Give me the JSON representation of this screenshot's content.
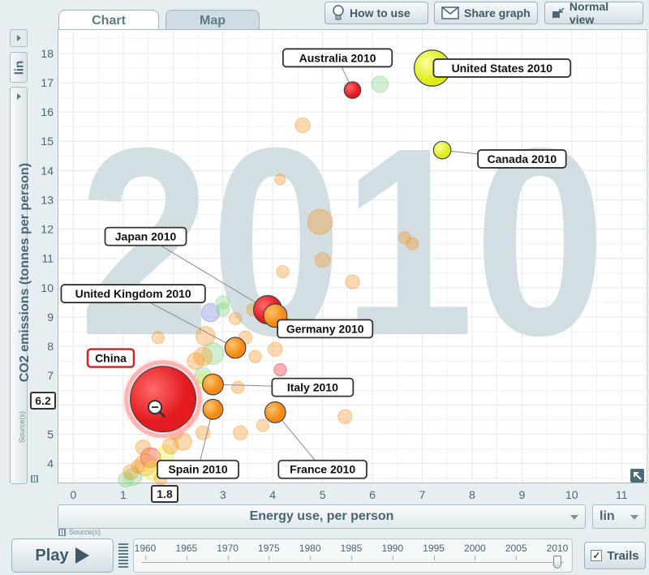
{
  "tabs": {
    "chart": "Chart",
    "map": "Map"
  },
  "toolbar": {
    "how_to_use": "How to use",
    "share_graph": "Share graph",
    "normal_view": "Normal view"
  },
  "y_scale": "lin",
  "x_scale": "lin",
  "source_label": "Source(s)",
  "selected": {
    "name": "China",
    "x_value": "1.8",
    "y_value": "6.2"
  },
  "play": {
    "label": "Play"
  },
  "trails": {
    "label": "Trails"
  },
  "timeline": {
    "years": [
      "1960",
      "1965",
      "1970",
      "1975",
      "1980",
      "1985",
      "1990",
      "1995",
      "2000",
      "2005",
      "2010"
    ],
    "current": 2010
  },
  "colors": {
    "red": "#ec2227",
    "orange": "#f6921e",
    "yellow": "#e5f232",
    "green": "#7fd37a",
    "blue": "#6f7fe0",
    "watermark": "#d3dee3"
  },
  "chart_data": {
    "type": "scatter",
    "year_watermark": "2010",
    "xlabel": "Energy use, per person",
    "ylabel": "CO2 emissions (tonnes per person)",
    "xlim": [
      -0.3,
      11.5
    ],
    "ylim": [
      3.35,
      18.8
    ],
    "xticks": [
      0,
      1,
      2,
      3,
      4,
      5,
      6,
      7,
      8,
      9,
      10,
      11
    ],
    "yticks": [
      4,
      5,
      6,
      7,
      8,
      9,
      10,
      11,
      12,
      13,
      14,
      15,
      16,
      17,
      18
    ],
    "highlighted": [
      {
        "label": "Australia 2010",
        "x": 5.6,
        "y": 16.75,
        "size": 1.2,
        "color": "red",
        "tag_x": 5.3,
        "tag_y": 17.85
      },
      {
        "label": "United States 2010",
        "x": 7.2,
        "y": 17.5,
        "size": 3.5,
        "color": "yellow",
        "tag_x": 8.6,
        "tag_y": 17.5
      },
      {
        "label": "Canada 2010",
        "x": 7.4,
        "y": 14.7,
        "size": 1.3,
        "color": "yellow",
        "tag_x": 9.0,
        "tag_y": 14.4
      },
      {
        "label": "Japan 2010",
        "x": 3.9,
        "y": 9.25,
        "size": 2.6,
        "color": "red",
        "tag_x": 1.45,
        "tag_y": 11.75
      },
      {
        "label": "Germany 2010",
        "x": 4.05,
        "y": 9.05,
        "size": 2.0,
        "color": "orange",
        "tag_x": 5.05,
        "tag_y": 8.6
      },
      {
        "label": "United Kingdom 2010",
        "x": 3.25,
        "y": 7.95,
        "size": 1.7,
        "color": "orange",
        "tag_x": 1.2,
        "tag_y": 9.8
      },
      {
        "label": "Italy 2010",
        "x": 2.8,
        "y": 6.7,
        "size": 1.7,
        "color": "orange",
        "tag_x": 4.8,
        "tag_y": 6.6
      },
      {
        "label": "Spain 2010",
        "x": 2.8,
        "y": 5.85,
        "size": 1.6,
        "color": "orange",
        "tag_x": 2.5,
        "tag_y": 3.8
      },
      {
        "label": "France 2010",
        "x": 4.05,
        "y": 5.75,
        "size": 1.7,
        "color": "orange",
        "tag_x": 5.0,
        "tag_y": 3.8
      },
      {
        "label": "China",
        "x": 1.8,
        "y": 6.2,
        "size": 7.0,
        "color": "red",
        "tag_x": 0.75,
        "tag_y": 7.6
      }
    ],
    "background_points": [
      {
        "x": 6.15,
        "y": 16.95,
        "size": 1.2,
        "color": "green"
      },
      {
        "x": 4.6,
        "y": 15.55,
        "size": 1.0,
        "color": "orange"
      },
      {
        "x": 4.95,
        "y": 12.25,
        "size": 2.2,
        "color": "orange"
      },
      {
        "x": 5.0,
        "y": 10.95,
        "size": 1.0,
        "color": "orange"
      },
      {
        "x": 6.65,
        "y": 11.7,
        "size": 0.7,
        "color": "orange"
      },
      {
        "x": 6.8,
        "y": 11.5,
        "size": 0.7,
        "color": "orange"
      },
      {
        "x": 5.6,
        "y": 10.2,
        "size": 0.9,
        "color": "orange"
      },
      {
        "x": 4.2,
        "y": 10.55,
        "size": 0.7,
        "color": "orange"
      },
      {
        "x": 4.15,
        "y": 13.7,
        "size": 0.5,
        "color": "orange"
      },
      {
        "x": 2.75,
        "y": 9.15,
        "size": 1.4,
        "color": "blue"
      },
      {
        "x": 3.0,
        "y": 9.5,
        "size": 0.8,
        "color": "green"
      },
      {
        "x": 3.0,
        "y": 9.25,
        "size": 0.8,
        "color": "green"
      },
      {
        "x": 3.6,
        "y": 9.25,
        "size": 0.7,
        "color": "orange"
      },
      {
        "x": 3.25,
        "y": 8.95,
        "size": 0.7,
        "color": "orange"
      },
      {
        "x": 2.65,
        "y": 8.35,
        "size": 1.5,
        "color": "orange"
      },
      {
        "x": 2.8,
        "y": 7.75,
        "size": 1.8,
        "color": "green"
      },
      {
        "x": 2.6,
        "y": 7.65,
        "size": 1.4,
        "color": "orange"
      },
      {
        "x": 2.45,
        "y": 7.5,
        "size": 1.2,
        "color": "orange"
      },
      {
        "x": 3.45,
        "y": 8.3,
        "size": 0.8,
        "color": "orange"
      },
      {
        "x": 4.05,
        "y": 7.9,
        "size": 0.9,
        "color": "orange"
      },
      {
        "x": 3.65,
        "y": 7.65,
        "size": 0.7,
        "color": "orange"
      },
      {
        "x": 4.15,
        "y": 7.2,
        "size": 0.7,
        "color": "red"
      },
      {
        "x": 1.7,
        "y": 8.3,
        "size": 0.7,
        "color": "orange"
      },
      {
        "x": 2.6,
        "y": 7.0,
        "size": 1.2,
        "color": "green"
      },
      {
        "x": 2.65,
        "y": 6.8,
        "size": 1.3,
        "color": "yellow"
      },
      {
        "x": 3.3,
        "y": 6.6,
        "size": 0.7,
        "color": "orange"
      },
      {
        "x": 5.45,
        "y": 5.6,
        "size": 0.9,
        "color": "orange"
      },
      {
        "x": 3.8,
        "y": 5.3,
        "size": 0.7,
        "color": "orange"
      },
      {
        "x": 3.35,
        "y": 5.05,
        "size": 0.9,
        "color": "orange"
      },
      {
        "x": 2.6,
        "y": 5.05,
        "size": 0.9,
        "color": "orange"
      },
      {
        "x": 2.2,
        "y": 4.75,
        "size": 1.3,
        "color": "orange"
      },
      {
        "x": 1.55,
        "y": 4.2,
        "size": 1.6,
        "color": "red"
      },
      {
        "x": 1.85,
        "y": 4.35,
        "size": 1.2,
        "color": "yellow"
      },
      {
        "x": 1.45,
        "y": 3.95,
        "size": 1.8,
        "color": "orange"
      },
      {
        "x": 1.6,
        "y": 3.75,
        "size": 1.5,
        "color": "yellow"
      },
      {
        "x": 1.2,
        "y": 3.55,
        "size": 1.3,
        "color": "green"
      },
      {
        "x": 1.05,
        "y": 3.45,
        "size": 1.0,
        "color": "green"
      },
      {
        "x": 1.3,
        "y": 3.9,
        "size": 0.8,
        "color": "orange"
      },
      {
        "x": 1.75,
        "y": 3.5,
        "size": 0.8,
        "color": "orange"
      },
      {
        "x": 1.15,
        "y": 3.7,
        "size": 1.0,
        "color": "orange"
      },
      {
        "x": 1.4,
        "y": 4.55,
        "size": 1.0,
        "color": "orange"
      },
      {
        "x": 1.95,
        "y": 4.6,
        "size": 1.1,
        "color": "orange"
      },
      {
        "x": 2.05,
        "y": 5.05,
        "size": 0.9,
        "color": "orange"
      },
      {
        "x": 2.25,
        "y": 5.6,
        "size": 0.9,
        "color": "orange"
      }
    ]
  }
}
